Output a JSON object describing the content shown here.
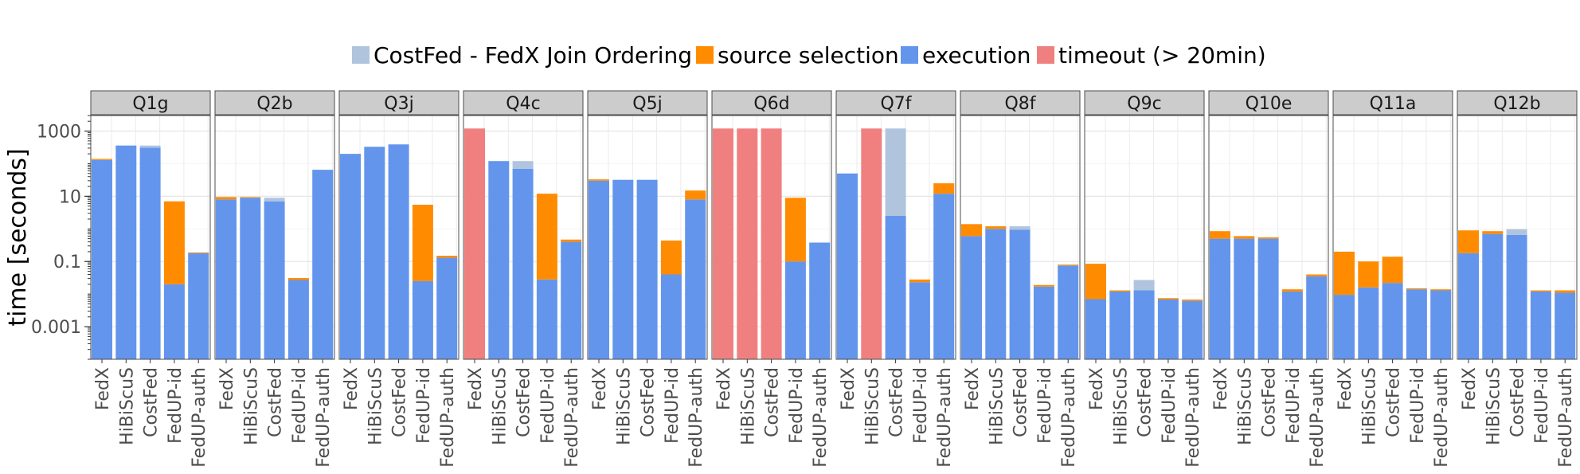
{
  "chart_data": {
    "type": "bar",
    "stacked": true,
    "log_scale_y": true,
    "ylabel": "time [seconds]",
    "ylim": [
      0.0001,
      3000
    ],
    "yticks": [
      {
        "value": 0.001,
        "label": "0.001"
      },
      {
        "value": 0.1,
        "label": "0.1"
      },
      {
        "value": 10,
        "label": "10"
      },
      {
        "value": 1000,
        "label": "1000"
      }
    ],
    "legend": {
      "position": "top",
      "items": [
        {
          "key": "joinorder",
          "label": "CostFed - FedX Join Ordering",
          "color": "#b0c4de"
        },
        {
          "key": "source",
          "label": "source selection",
          "color": "#ff8c00"
        },
        {
          "key": "execution",
          "label": "execution",
          "color": "#6495ed"
        },
        {
          "key": "timeout",
          "label": "timeout (> 20min)",
          "color": "#f08080"
        }
      ]
    },
    "engines": [
      "FedX",
      "HiBiScuS",
      "CostFed",
      "FedUP-id",
      "FedUP-auth"
    ],
    "facets": [
      {
        "label": "Q1g",
        "bars": [
          {
            "exec": 130,
            "total": 140
          },
          {
            "exec": 360,
            "total": 360
          },
          {
            "exec": 310,
            "total": 360,
            "seg": "joinorder"
          },
          {
            "exec": 0.02,
            "total": 7
          },
          {
            "exec": 0.18,
            "total": 0.19
          }
        ]
      },
      {
        "label": "Q2b",
        "bars": [
          {
            "exec": 8,
            "total": 9.5
          },
          {
            "exec": 9,
            "total": 9.5
          },
          {
            "exec": 7,
            "total": 9,
            "seg": "joinorder"
          },
          {
            "exec": 0.027,
            "total": 0.031
          },
          {
            "exec": 65,
            "total": 65
          }
        ]
      },
      {
        "label": "Q3j",
        "bars": [
          {
            "exec": 200,
            "total": 200
          },
          {
            "exec": 330,
            "total": 330
          },
          {
            "exec": 390,
            "total": 390
          },
          {
            "exec": 0.025,
            "total": 5.5
          },
          {
            "exec": 0.13,
            "total": 0.15
          }
        ]
      },
      {
        "label": "Q4c",
        "bars": [
          {
            "timeout": true,
            "total": 1200
          },
          {
            "exec": 120,
            "total": 120
          },
          {
            "exec": 70,
            "total": 120,
            "seg": "joinorder"
          },
          {
            "exec": 0.028,
            "total": 12
          },
          {
            "exec": 0.4,
            "total": 0.47
          }
        ]
      },
      {
        "label": "Q5j",
        "bars": [
          {
            "exec": 30,
            "total": 33
          },
          {
            "exec": 32,
            "total": 32
          },
          {
            "exec": 32,
            "total": 32
          },
          {
            "exec": 0.04,
            "total": 0.44
          },
          {
            "exec": 8,
            "total": 15
          }
        ]
      },
      {
        "label": "Q6d",
        "bars": [
          {
            "timeout": true,
            "total": 1200
          },
          {
            "timeout": true,
            "total": 1200
          },
          {
            "timeout": true,
            "total": 1200
          },
          {
            "exec": 0.1,
            "total": 9
          },
          {
            "exec": 0.38,
            "total": 0.38
          }
        ]
      },
      {
        "label": "Q7f",
        "bars": [
          {
            "exec": 50,
            "total": 50
          },
          {
            "timeout": true,
            "total": 1200
          },
          {
            "exec": 2.5,
            "total": 1200,
            "seg": "joinorder"
          },
          {
            "exec": 0.023,
            "total": 0.028
          },
          {
            "exec": 12,
            "total": 25
          }
        ]
      },
      {
        "label": "Q8f",
        "bars": [
          {
            "exec": 0.6,
            "total": 1.4
          },
          {
            "exec": 1.0,
            "total": 1.2
          },
          {
            "exec": 0.95,
            "total": 1.2,
            "seg": "joinorder"
          },
          {
            "exec": 0.017,
            "total": 0.019
          },
          {
            "exec": 0.075,
            "total": 0.08
          }
        ]
      },
      {
        "label": "Q9c",
        "bars": [
          {
            "exec": 0.007,
            "total": 0.085
          },
          {
            "exec": 0.012,
            "total": 0.013
          },
          {
            "exec": 0.013,
            "total": 0.027,
            "seg": "joinorder"
          },
          {
            "exec": 0.0068,
            "total": 0.0075
          },
          {
            "exec": 0.0062,
            "total": 0.0068
          }
        ]
      },
      {
        "label": "Q10e",
        "bars": [
          {
            "exec": 0.5,
            "total": 0.85
          },
          {
            "exec": 0.5,
            "total": 0.6
          },
          {
            "exec": 0.5,
            "total": 0.55
          },
          {
            "exec": 0.012,
            "total": 0.014
          },
          {
            "exec": 0.035,
            "total": 0.04
          }
        ]
      },
      {
        "label": "Q11a",
        "bars": [
          {
            "exec": 0.0095,
            "total": 0.2
          },
          {
            "exec": 0.016,
            "total": 0.1
          },
          {
            "exec": 0.022,
            "total": 0.14
          },
          {
            "exec": 0.014,
            "total": 0.015
          },
          {
            "exec": 0.013,
            "total": 0.014
          }
        ]
      },
      {
        "label": "Q12b",
        "bars": [
          {
            "exec": 0.18,
            "total": 0.9
          },
          {
            "exec": 0.7,
            "total": 0.85
          },
          {
            "exec": 0.65,
            "total": 0.98,
            "seg": "joinorder"
          },
          {
            "exec": 0.012,
            "total": 0.013
          },
          {
            "exec": 0.011,
            "total": 0.013
          }
        ]
      }
    ]
  }
}
